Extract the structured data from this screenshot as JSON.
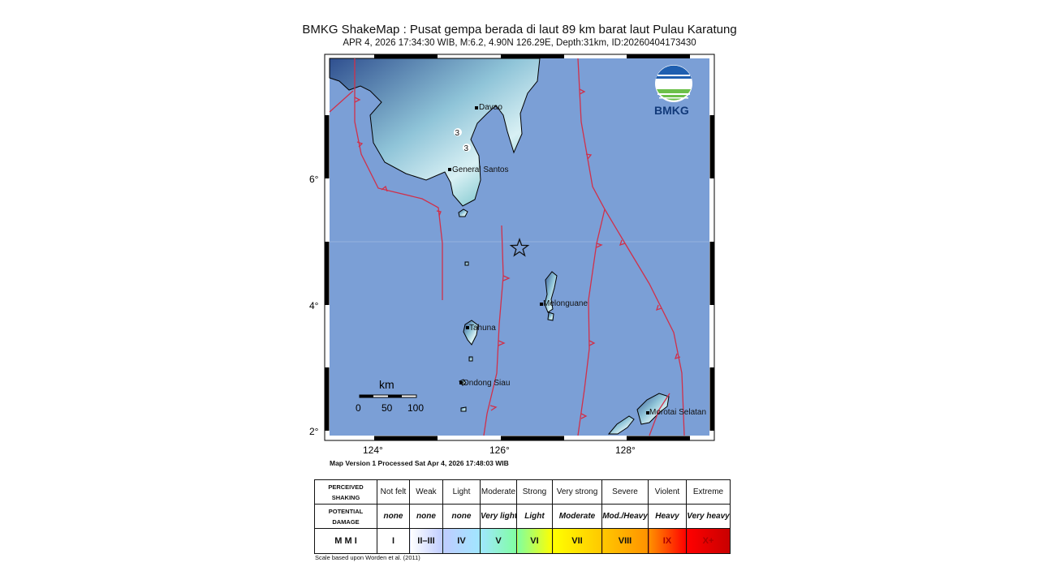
{
  "header": {
    "title": "BMKG ShakeMap : Pusat gempa berada di laut 89 km barat laut Pulau Karatung",
    "subtitle": "APR 4, 2026 17:34:30 WIB, M:6.2, 4.90N 126.29E, Depth:31km, ID:20260404173430"
  },
  "map": {
    "lat_ticks": [
      "6°",
      "4°",
      "2°"
    ],
    "lon_ticks": [
      "124°",
      "126°",
      "128°"
    ],
    "epicenter": {
      "lat": 4.9,
      "lon": 126.29,
      "icon": "star-icon"
    },
    "cities": [
      "Davao",
      "General Santos",
      "Melonguane",
      "Tahuna",
      "Ondong Siau",
      "Morotai Selatan"
    ],
    "intensity_labels": [
      "3",
      "3"
    ],
    "scalebar": {
      "unit": "km",
      "labels": [
        "0",
        "50",
        "100"
      ]
    },
    "logo": {
      "text": "BMKG"
    },
    "colors": {
      "sea": "#7b9fd6",
      "fault": "#d0304a",
      "land_dark": "#2f4f8f",
      "land_light": "#d8f0f4"
    }
  },
  "processed": "Map Version 1 Processed Sat Apr  4, 2026 17:48:03 WIB",
  "legend": {
    "row_headers": [
      "PERCEIVED SHAKING",
      "POTENTIAL DAMAGE",
      "M M I"
    ],
    "shaking": [
      "Not felt",
      "Weak",
      "Light",
      "Moderate",
      "Strong",
      "Very strong",
      "Severe",
      "Violent",
      "Extreme"
    ],
    "damage": [
      "none",
      "none",
      "none",
      "Very light",
      "Light",
      "Moderate",
      "Mod./Heavy",
      "Heavy",
      "Very heavy"
    ],
    "mmi": [
      "I",
      "II–III",
      "IV",
      "V",
      "VI",
      "VII",
      "VIII",
      "IX",
      "X+"
    ],
    "mmi_colors": [
      "#ffffff",
      "#bfccff",
      "#a0e6ff",
      "#80ffa0",
      "#ffff00",
      "#ffc800",
      "#ff9100",
      "#ff0000",
      "#c80000"
    ]
  },
  "scale_note": "Scale based upon Worden et al. (2011)"
}
